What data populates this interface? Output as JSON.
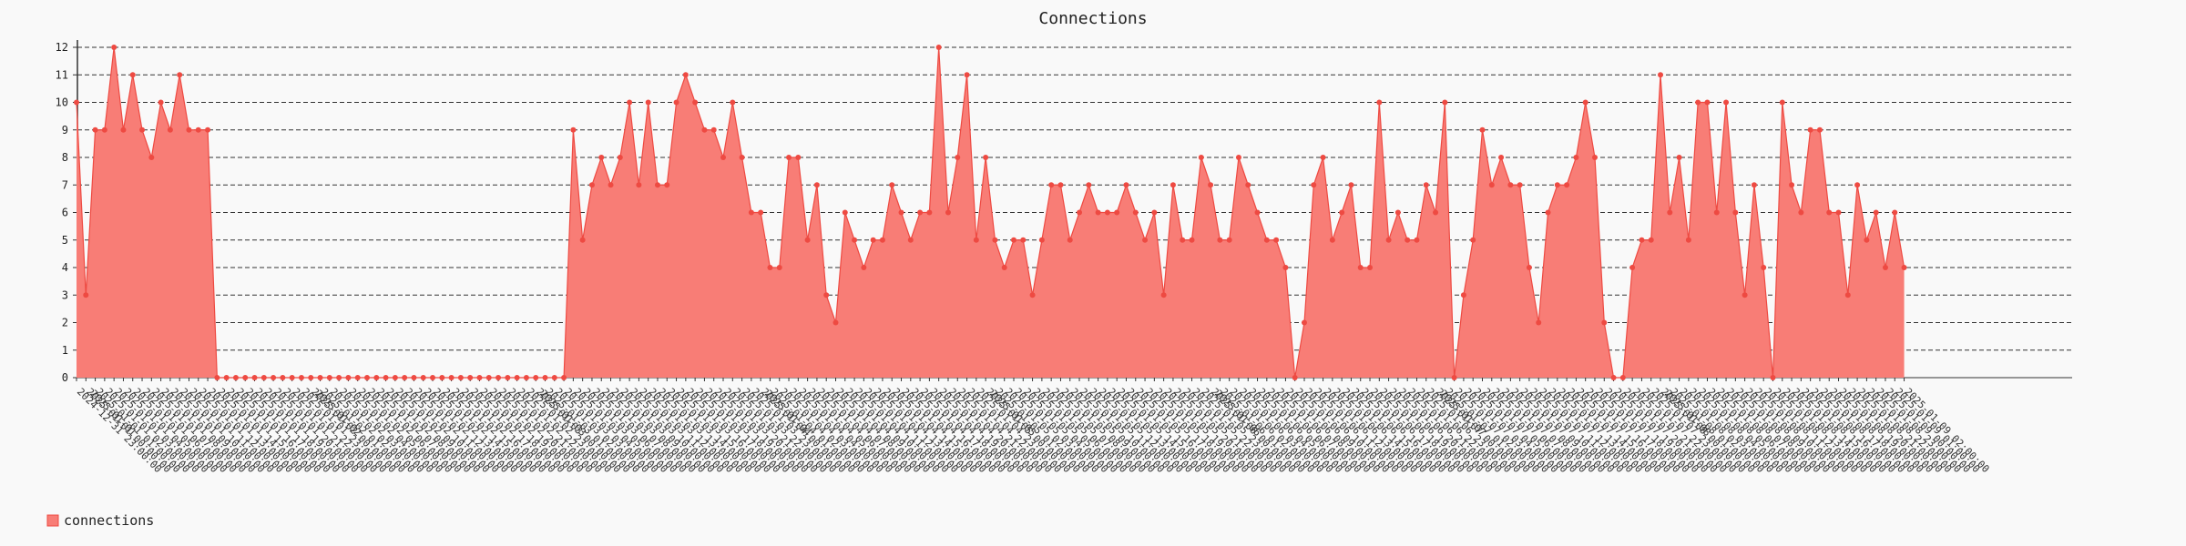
{
  "chart_data": {
    "type": "area",
    "title": "Connections",
    "xlabel": "",
    "ylabel": "",
    "ylim": [
      0,
      12
    ],
    "yticks": [
      0,
      1,
      2,
      3,
      4,
      5,
      6,
      7,
      8,
      9,
      10,
      11,
      12
    ],
    "x_start": "2024-12-31 23:00:00",
    "x_step_minutes": 60,
    "date_labels": [
      "2025-01-01",
      "2025-01-02",
      "2025-01-03",
      "2025-01-04",
      "2025-01-05",
      "2025-01-06",
      "2025-01-07",
      "2025-01-08"
    ],
    "grid": "horizontal-dashed",
    "legend_position": "bottom-left",
    "series": [
      {
        "name": "connections",
        "color": "#f87d76",
        "marker_color": "#ee4a42",
        "values": [
          10,
          3,
          9,
          9,
          12,
          9,
          11,
          9,
          8,
          10,
          9,
          11,
          9,
          9,
          9,
          0,
          0,
          0,
          0,
          0,
          0,
          0,
          0,
          0,
          0,
          0,
          0,
          0,
          0,
          0,
          0,
          0,
          0,
          0,
          0,
          0,
          0,
          0,
          0,
          0,
          0,
          0,
          0,
          0,
          0,
          0,
          0,
          0,
          0,
          0,
          0,
          0,
          0,
          9,
          5,
          7,
          8,
          7,
          8,
          10,
          7,
          10,
          7,
          7,
          10,
          11,
          10,
          9,
          9,
          8,
          10,
          8,
          6,
          6,
          4,
          4,
          8,
          8,
          5,
          7,
          3,
          2,
          6,
          5,
          4,
          5,
          5,
          7,
          6,
          5,
          6,
          6,
          12,
          6,
          8,
          11,
          5,
          8,
          5,
          4,
          5,
          5,
          3,
          5,
          7,
          7,
          5,
          6,
          7,
          6,
          6,
          6,
          7,
          6,
          5,
          6,
          3,
          7,
          5,
          5,
          8,
          7,
          5,
          5,
          8,
          7,
          6,
          5,
          5,
          4,
          0,
          2,
          7,
          8,
          5,
          6,
          7,
          4,
          4,
          10,
          5,
          6,
          5,
          5,
          7,
          6,
          10,
          0,
          3,
          5,
          9,
          7,
          8,
          7,
          7,
          4,
          2,
          6,
          7,
          7,
          8,
          10,
          8,
          2,
          0,
          0,
          4,
          5,
          5,
          11,
          6,
          8,
          5,
          10,
          10,
          6,
          10,
          6,
          3,
          7,
          4,
          0,
          10,
          7,
          6,
          9,
          9,
          6,
          6,
          3,
          7,
          5,
          6,
          4,
          6,
          4
        ]
      }
    ]
  }
}
